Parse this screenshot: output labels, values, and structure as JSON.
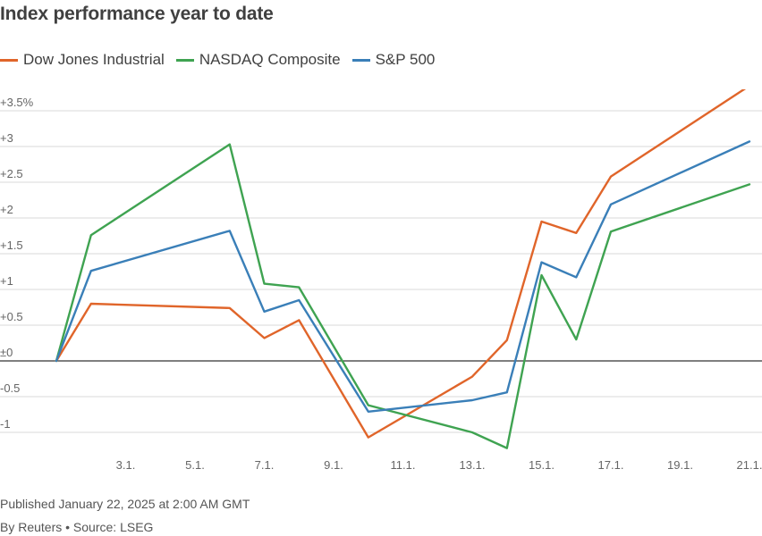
{
  "page": {
    "title": "Index performance year to date",
    "published": "Published January 22, 2025 at 2:00 AM GMT",
    "byline": "By Reuters • Source: LSEG"
  },
  "chart_data": {
    "type": "line",
    "title": "Index performance year to date",
    "xlabel": "",
    "ylabel": "",
    "x_tick_labels": [
      "3.1.",
      "5.1.",
      "7.1.",
      "9.1.",
      "11.1.",
      "13.1.",
      "15.1.",
      "17.1.",
      "19.1.",
      "21.1."
    ],
    "y_tick_labels": [
      "+3.5%",
      "+3",
      "+2.5",
      "+2",
      "+1.5",
      "+1",
      "+0.5",
      "±0",
      "-0.5",
      "-1"
    ],
    "y_ticks": [
      3.5,
      3,
      2.5,
      2,
      1.5,
      1,
      0.5,
      0,
      -0.5,
      -1
    ],
    "ylim": [
      -1.25,
      3.6
    ],
    "xlim": [
      "2025-01-01",
      "2025-01-21"
    ],
    "x": [
      "2025-01-01",
      "2025-01-02",
      "2025-01-06",
      "2025-01-07",
      "2025-01-08",
      "2025-01-10",
      "2025-01-13",
      "2025-01-14",
      "2025-01-15",
      "2025-01-16",
      "2025-01-17",
      "2025-01-21"
    ],
    "series": [
      {
        "name": "Dow Jones Industrial",
        "color": "#e0652a",
        "values": [
          0,
          0.8,
          0.74,
          0.32,
          0.57,
          -1.07,
          -0.22,
          0.29,
          1.95,
          1.79,
          2.58,
          3.85
        ]
      },
      {
        "name": "NASDAQ Composite",
        "color": "#3fa351",
        "values": [
          0,
          1.76,
          3.03,
          1.08,
          1.03,
          -0.62,
          -1.0,
          -1.22,
          1.2,
          0.3,
          1.81,
          2.47
        ]
      },
      {
        "name": "S&P 500",
        "color": "#3a7fb8",
        "values": [
          0,
          1.26,
          1.82,
          0.69,
          0.85,
          -0.71,
          -0.55,
          -0.44,
          1.38,
          1.17,
          2.19,
          3.07
        ]
      }
    ],
    "grid": true,
    "legend_position": "top-left"
  }
}
